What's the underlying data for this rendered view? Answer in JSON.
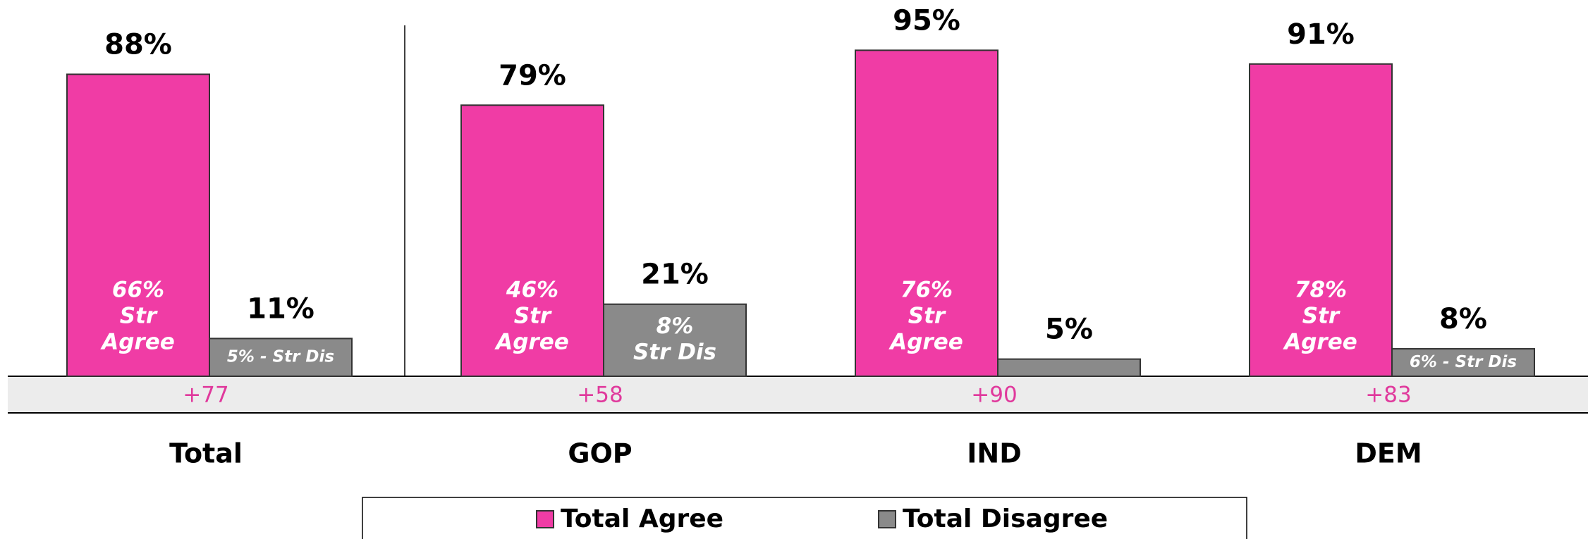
{
  "chart_data": {
    "type": "bar",
    "categories": [
      "Total",
      "GOP",
      "IND",
      "DEM"
    ],
    "series": [
      {
        "name": "Total Agree",
        "color": "#f03ca5",
        "values": [
          88,
          79,
          95,
          91
        ],
        "value_labels": [
          "88%",
          "79%",
          "95%",
          "91%"
        ],
        "inner_labels": [
          [
            "66%",
            "Str",
            "Agree"
          ],
          [
            "46%",
            "Str",
            "Agree"
          ],
          [
            "76%",
            "Str",
            "Agree"
          ],
          [
            "78%",
            "Str",
            "Agree"
          ]
        ]
      },
      {
        "name": "Total Disagree",
        "color": "#8a8a8a",
        "values": [
          11,
          21,
          5,
          8
        ],
        "value_labels": [
          "11%",
          "21%",
          "5%",
          "8%"
        ],
        "inner_labels": [
          [
            "5% - Str Dis"
          ],
          [
            "8%",
            "Str Dis"
          ],
          null,
          [
            "6% - Str Dis"
          ]
        ]
      }
    ],
    "net_labels": [
      "+77",
      "+58",
      "+90",
      "+83"
    ],
    "ylim": [
      0,
      100
    ],
    "legend": "bottom"
  }
}
